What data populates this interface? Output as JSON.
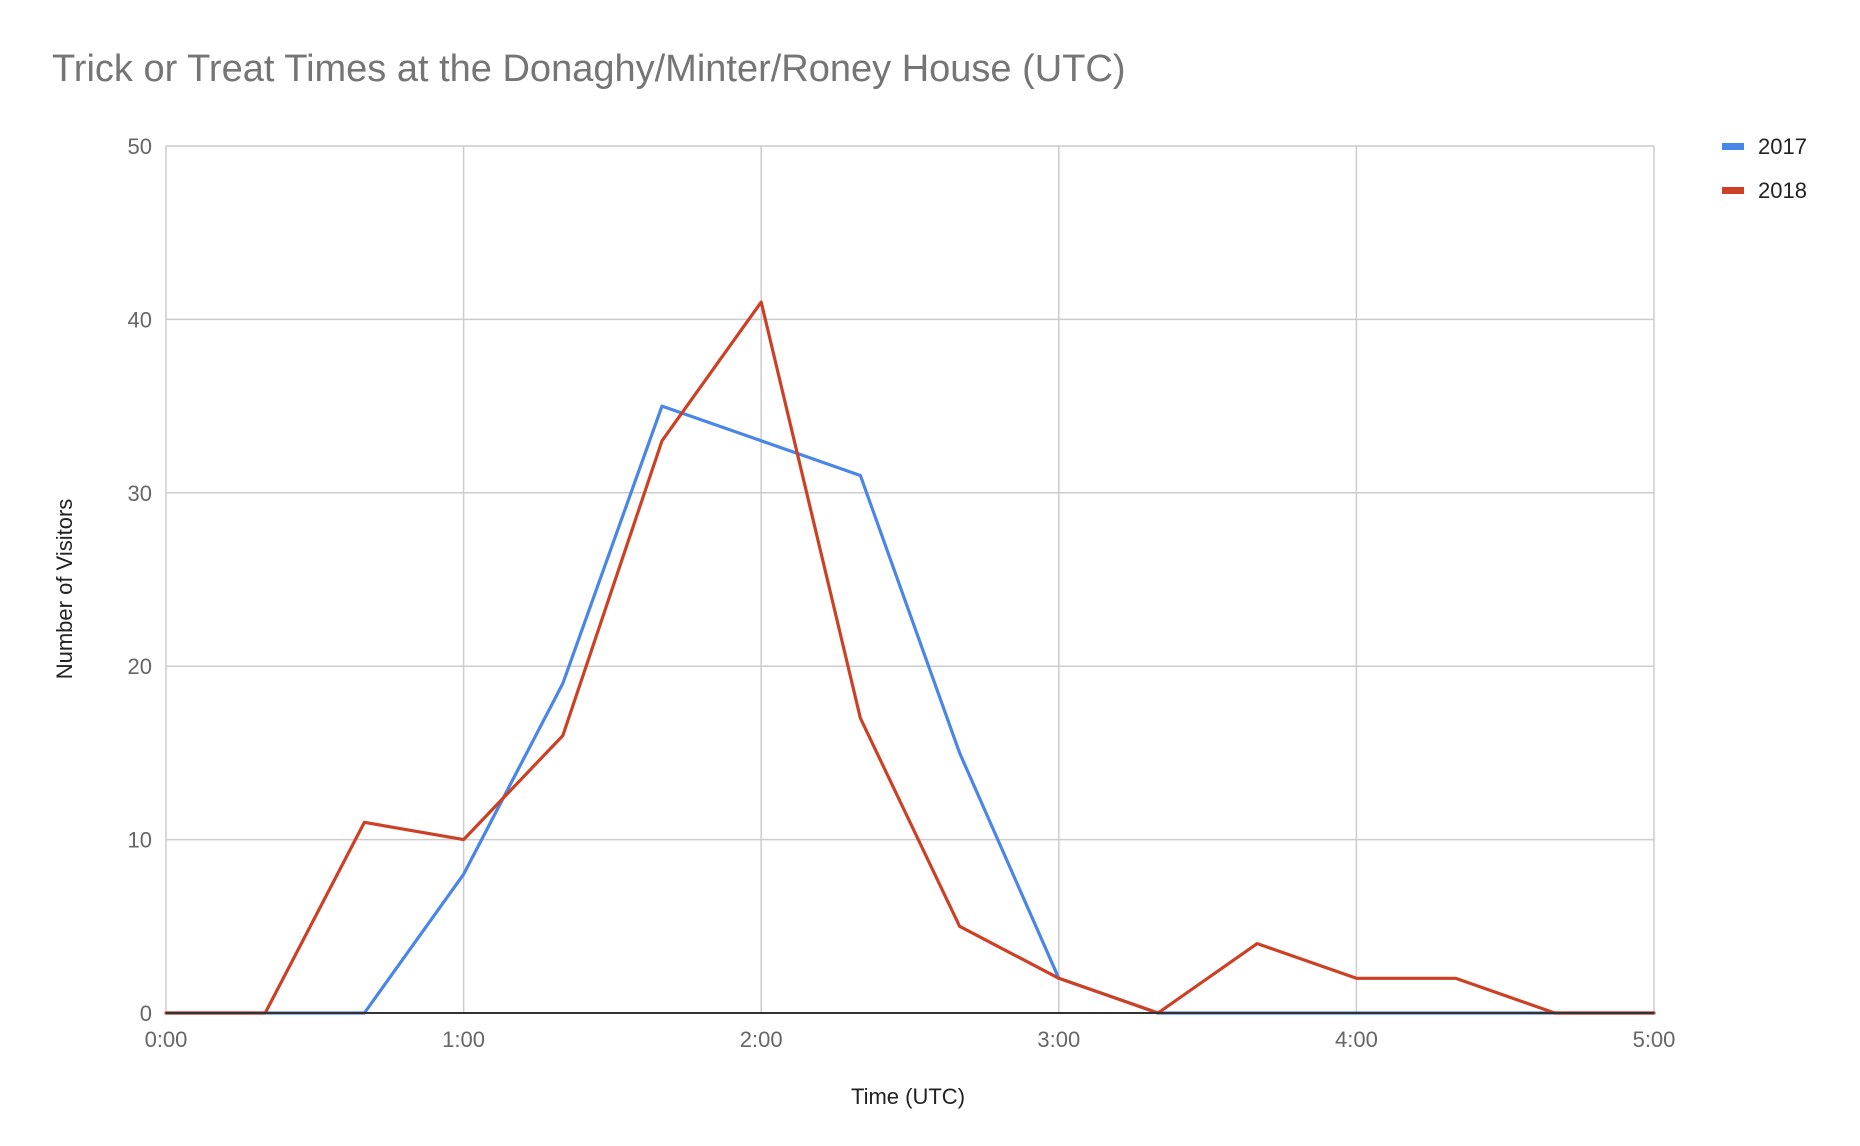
{
  "title": "Trick or Treat Times at the Donaghy/Minter/Roney House (UTC)",
  "colors": {
    "2017": "#4a86e8",
    "2018": "#cc4125",
    "grid": "#cccccc",
    "axis": "#333333"
  },
  "chart_data": {
    "type": "line",
    "title": "Trick or Treat Times at the Donaghy/Minter/Roney House (UTC)",
    "xlabel": "Time (UTC)",
    "ylabel": "Number of Visitors",
    "x": [
      "0:00",
      "0:20",
      "0:40",
      "1:00",
      "1:20",
      "1:40",
      "2:00",
      "2:20",
      "2:40",
      "3:00",
      "3:20",
      "3:40",
      "4:00",
      "4:20",
      "4:40",
      "5:00"
    ],
    "x_ticks": [
      "0:00",
      "1:00",
      "2:00",
      "3:00",
      "4:00",
      "5:00"
    ],
    "xlim": [
      "0:00",
      "5:00"
    ],
    "ylim": [
      0,
      50
    ],
    "y_ticks": [
      0,
      10,
      20,
      30,
      40,
      50
    ],
    "grid": true,
    "legend_position": "top-right",
    "series": [
      {
        "name": "2017",
        "color": "#4a86e8",
        "values": [
          0,
          0,
          0,
          8,
          19,
          35,
          33,
          31,
          15,
          2,
          0,
          0,
          0,
          0,
          0,
          0
        ]
      },
      {
        "name": "2018",
        "color": "#cc4125",
        "values": [
          0,
          0,
          11,
          10,
          16,
          33,
          41,
          17,
          5,
          2,
          0,
          4,
          2,
          2,
          0,
          0
        ]
      }
    ]
  }
}
